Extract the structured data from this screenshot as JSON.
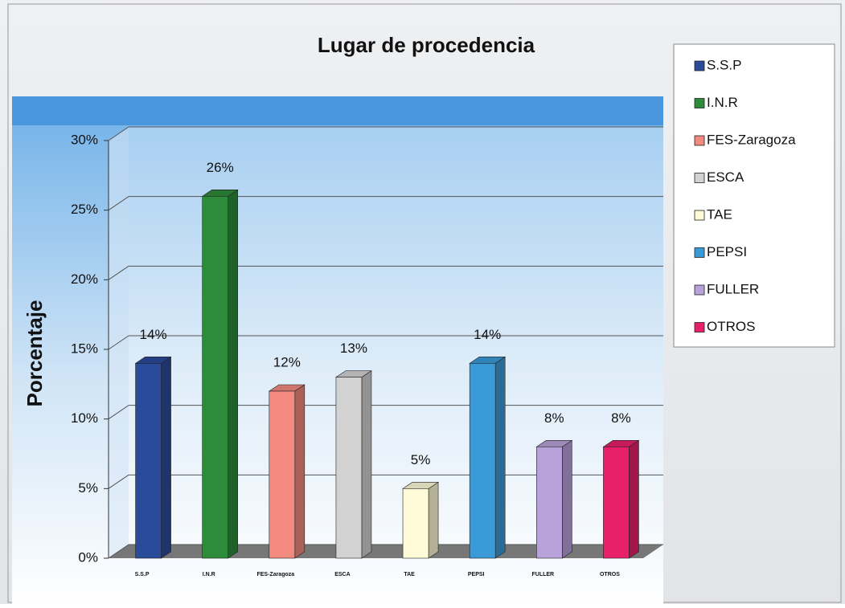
{
  "chart_data": {
    "type": "bar3d",
    "title": "Lugar de procedencia",
    "ylabel": "Porcentaje",
    "categories": [
      "S.S.P",
      "I.N.R",
      "FES-Zaragoza",
      "ESCA",
      "TAE",
      "PEPSI",
      "FULLER",
      "OTROS"
    ],
    "values": [
      14,
      26,
      12,
      13,
      5,
      14,
      8,
      8
    ],
    "value_labels": [
      "14%",
      "26%",
      "12%",
      "13%",
      "5%",
      "14%",
      "8%",
      "8%"
    ],
    "colors": [
      "#2a4a9a",
      "#2e8b3a",
      "#f28a80",
      "#d2d2d2",
      "#fffbd8",
      "#3a9ad8",
      "#b8a2da",
      "#e8206a"
    ],
    "ylim": [
      0,
      30
    ],
    "yticks": [
      {
        "value": 0,
        "label": "0%"
      },
      {
        "value": 5,
        "label": "5%"
      },
      {
        "value": 10,
        "label": "10%"
      },
      {
        "value": 15,
        "label": "15%"
      },
      {
        "value": 20,
        "label": "20%"
      },
      {
        "value": 25,
        "label": "25%"
      },
      {
        "value": 30,
        "label": "30%"
      }
    ],
    "grid": true,
    "legend": "right"
  }
}
